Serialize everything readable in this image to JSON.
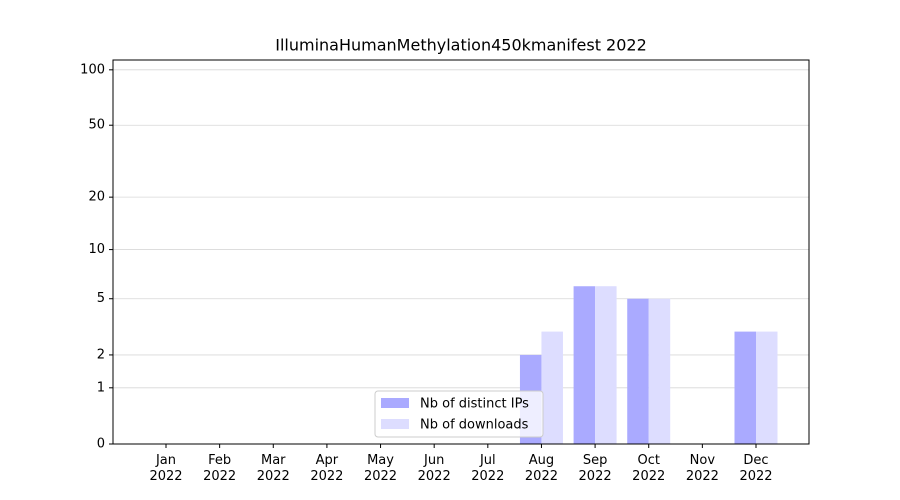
{
  "chart_data": {
    "type": "bar",
    "title": "IlluminaHumanMethylation450kmanifest 2022",
    "categories": [
      "Jan\n2022",
      "Feb\n2022",
      "Mar\n2022",
      "Apr\n2022",
      "May\n2022",
      "Jun\n2022",
      "Jul\n2022",
      "Aug\n2022",
      "Sep\n2022",
      "Oct\n2022",
      "Nov\n2022",
      "Dec\n2022"
    ],
    "series": [
      {
        "name": "Nb of distinct IPs",
        "color": "#aaaaff",
        "values": [
          0,
          0,
          0,
          0,
          0,
          0,
          0,
          2,
          6,
          5,
          0,
          3
        ]
      },
      {
        "name": "Nb of downloads",
        "color": "#ddddff",
        "values": [
          0,
          0,
          0,
          0,
          0,
          0,
          0,
          3,
          6,
          5,
          0,
          3
        ]
      }
    ],
    "yscale": "log1p",
    "ylim": [
      0,
      113
    ],
    "yticks": [
      0,
      1,
      2,
      5,
      10,
      20,
      50,
      100
    ],
    "grid": true,
    "legend": "lower center"
  }
}
